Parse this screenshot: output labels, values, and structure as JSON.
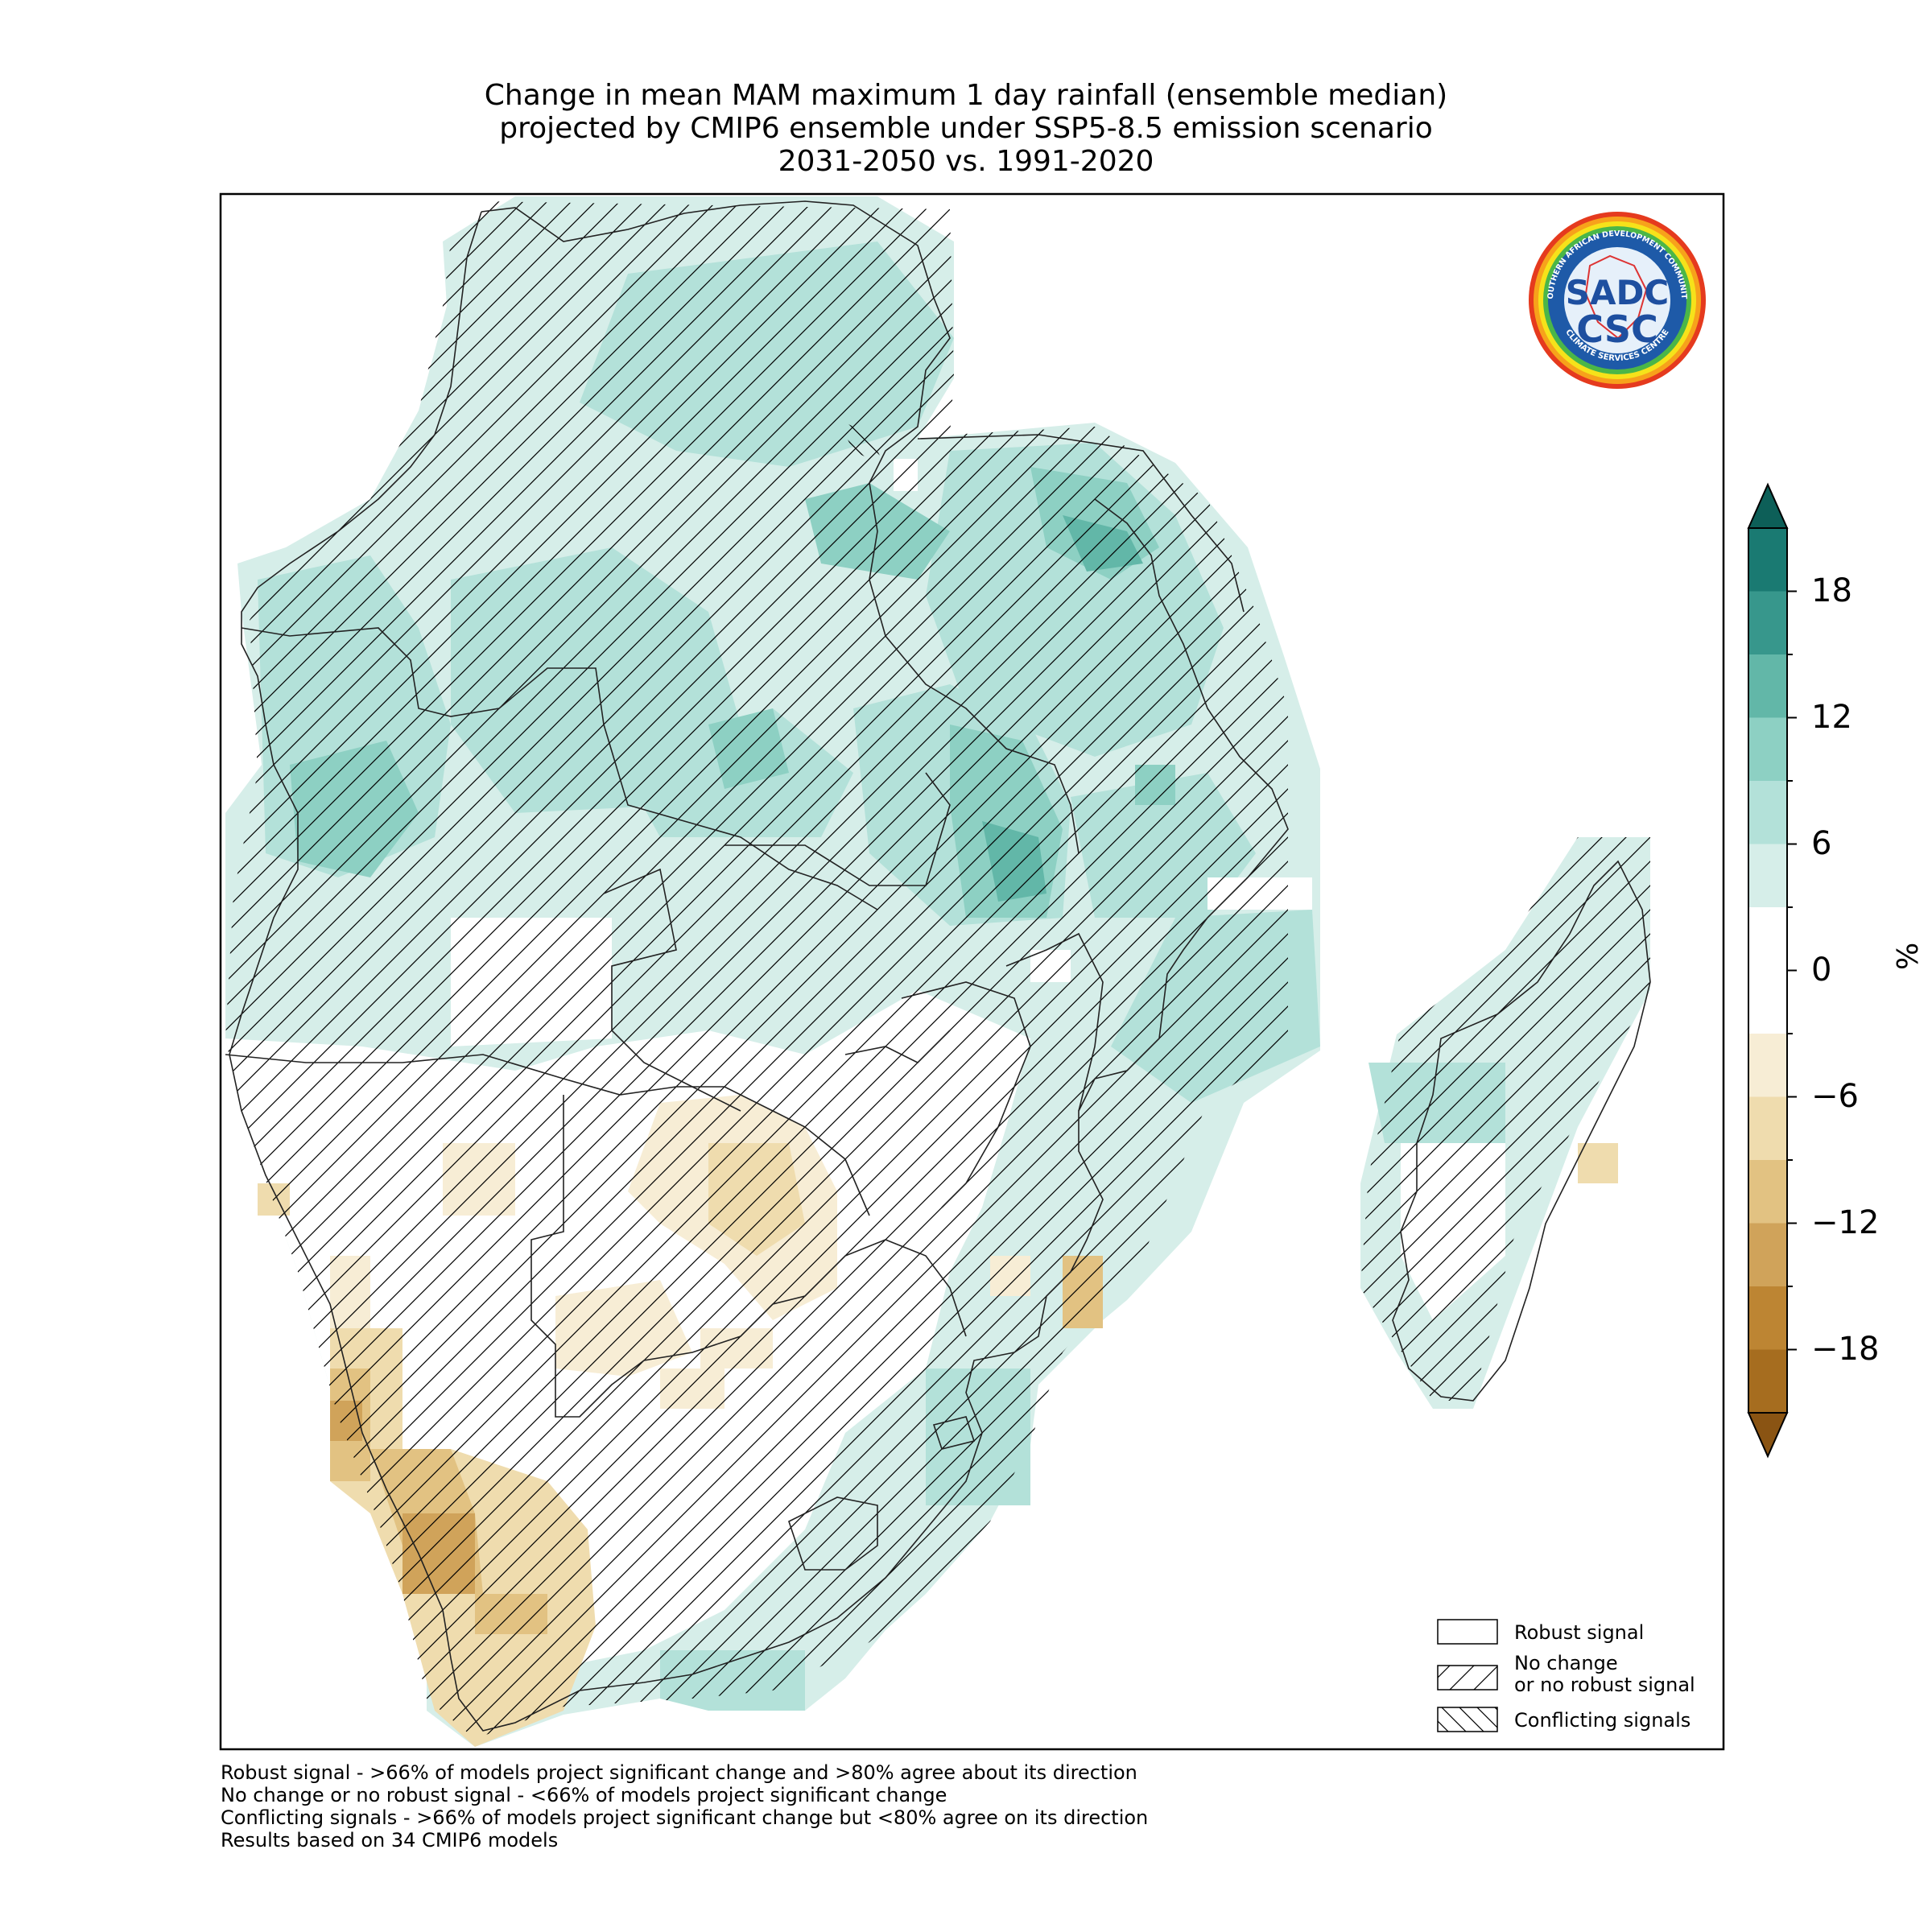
{
  "title": {
    "line1": "Change in mean MAM maximum 1 day rainfall (ensemble median)",
    "line2": "projected by CMIP6 ensemble under SSP5-8.5 emission scenario",
    "line3": "2031-2050 vs. 1991-2020"
  },
  "logo": {
    "top_text": "SOUTHERN AFRICAN DEVELOPMENT COMMUNITY",
    "bottom_text": "CLIMATE SERVICES CENTRE",
    "mark1": "SADC",
    "mark2": "CSC"
  },
  "legend": {
    "robust": "Robust signal",
    "nochange_line1": "No change",
    "nochange_line2": "or no robust signal",
    "conflicting": "Conflicting signals"
  },
  "footnotes": [
    "Robust signal - >66% of models project significant change and >80% agree about its direction",
    "No change or no robust signal - <66% of models project significant change",
    "Conflicting signals - >66% of models project significant change but <80% agree on its direction",
    "Results based on 34 CMIP6 models"
  ],
  "colorbar": {
    "unit": "%",
    "tick_labels": [
      "18",
      "12",
      "6",
      "0",
      "−6",
      "−12",
      "−18"
    ],
    "tick_values": [
      18,
      12,
      6,
      0,
      -6,
      -12,
      -18
    ],
    "range": [
      -21,
      21
    ],
    "step": 3,
    "colors": [
      "#a66d1f",
      "#bd8533",
      "#d0a35a",
      "#e2c282",
      "#efdcae",
      "#f7edd5",
      "#ffffff",
      "#d6eee9",
      "#b3e1d9",
      "#8dd0c3",
      "#62b7a8",
      "#37978c",
      "#1a7a72"
    ],
    "extend_low_color": "#8a5413",
    "extend_high_color": "#0d5f58"
  },
  "colors": {
    "green_light": "#d6eee9",
    "green_mid": "#b3e1d9",
    "green_strong": "#8dd0c3",
    "green_dark": "#62b7a8",
    "green_darker": "#37978c",
    "brown_light": "#f7edd5",
    "brown_mid": "#efdcae",
    "brown_strong": "#e2c282",
    "brown_dark": "#d0a35a",
    "brown_darker": "#bd8533"
  }
}
